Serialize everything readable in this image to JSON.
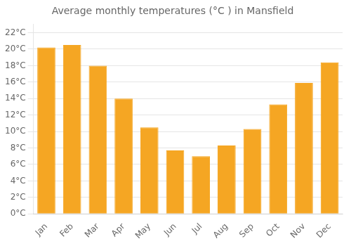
{
  "chart_data": {
    "type": "bar",
    "title": "Average monthly temperatures (°C ) in Mansfield",
    "categories": [
      "Jan",
      "Feb",
      "Mar",
      "Apr",
      "May",
      "Jun",
      "Jul",
      "Aug",
      "Sep",
      "Oct",
      "Nov",
      "Dec"
    ],
    "values": [
      20.2,
      20.5,
      18.0,
      14.0,
      10.5,
      7.7,
      7.0,
      8.3,
      10.3,
      13.3,
      15.9,
      18.4
    ],
    "color": "#F5A623",
    "ylim": [
      0,
      23
    ],
    "yticks": [
      {
        "value": 0,
        "label": "0°C"
      },
      {
        "value": 2,
        "label": "2°C"
      },
      {
        "value": 4,
        "label": "4°C"
      },
      {
        "value": 6,
        "label": "6°C"
      },
      {
        "value": 8,
        "label": "8°C"
      },
      {
        "value": 10,
        "label": "10°C"
      },
      {
        "value": 12,
        "label": "12°C"
      },
      {
        "value": 14,
        "label": "14°C"
      },
      {
        "value": 16,
        "label": "16°C"
      },
      {
        "value": 18,
        "label": "18°C"
      },
      {
        "value": 20,
        "label": "20°C"
      },
      {
        "value": 22,
        "label": "22°C"
      }
    ],
    "grid": true
  }
}
